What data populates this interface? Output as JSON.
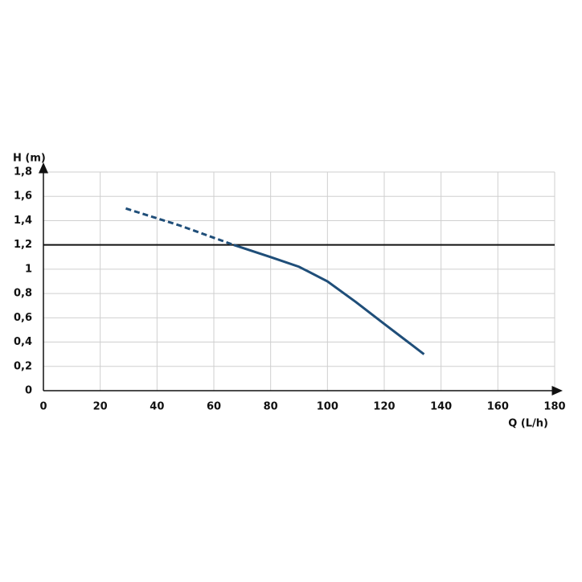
{
  "chart_data": {
    "type": "line",
    "ylabel": "H (m)",
    "xlabel": "Q (L/h)",
    "xlim": [
      0,
      180
    ],
    "xticks": [
      0,
      20,
      40,
      60,
      80,
      100,
      120,
      140,
      160,
      180
    ],
    "ylim": [
      0,
      1.8
    ],
    "yticks": [
      0,
      {
        "value": 0.2,
        "label": "0,2"
      },
      {
        "value": 0.4,
        "label": "0,4"
      },
      {
        "value": 0.6,
        "label": "0,6"
      },
      {
        "value": 0.8,
        "label": "0,8"
      },
      1,
      {
        "value": 1.2,
        "label": "1,2"
      },
      {
        "value": 1.4,
        "label": "1,4"
      },
      {
        "value": 1.6,
        "label": "1,6"
      },
      {
        "value": 1.8,
        "label": "1,8"
      }
    ],
    "grid": true,
    "hline": 1.2,
    "hline_color": "#111111",
    "series": [
      {
        "color": "#1f4e79",
        "dashed": true,
        "x": [
          29,
          48,
          67
        ],
        "values": [
          1.5,
          1.36,
          1.2
        ]
      },
      {
        "color": "#1f4e79",
        "dashed": false,
        "x": [
          67,
          80,
          90,
          100,
          110,
          120,
          134
        ],
        "values": [
          1.2,
          1.1,
          1.02,
          0.9,
          0.73,
          0.55,
          0.3
        ]
      }
    ]
  }
}
